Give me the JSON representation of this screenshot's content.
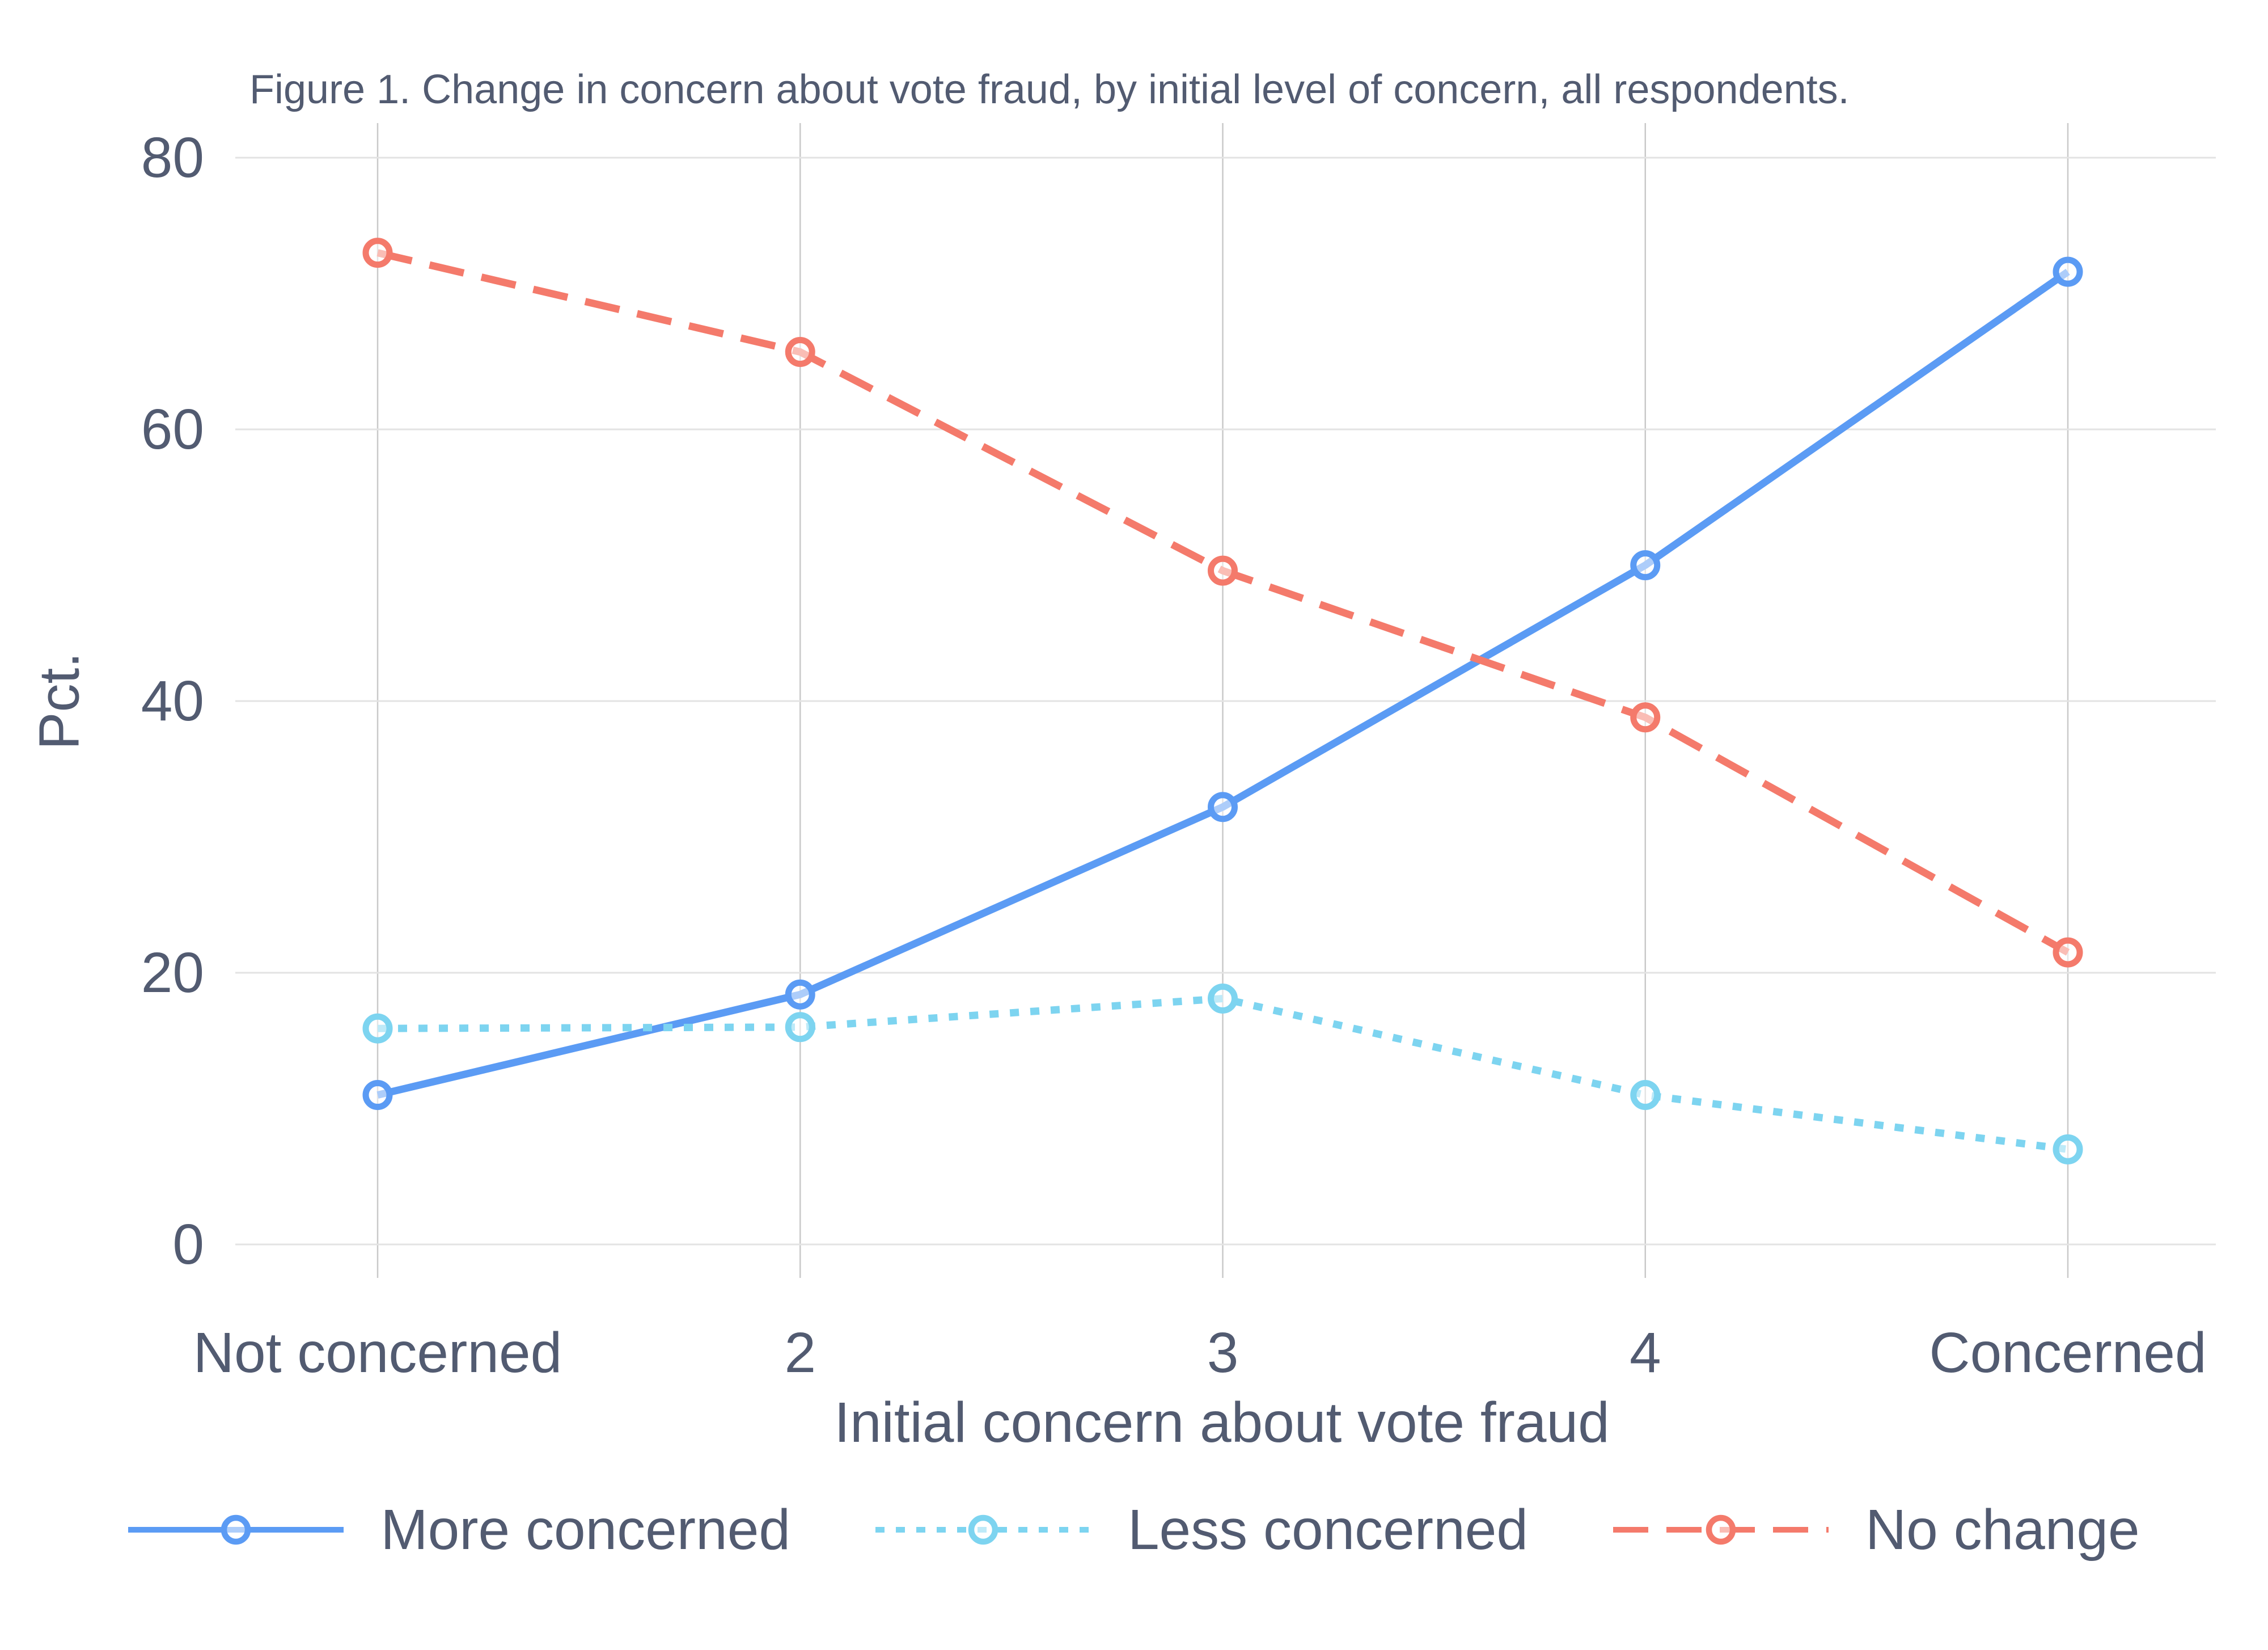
{
  "chart_data": {
    "type": "line",
    "title": "Figure 1. Change in concern about vote fraud, by initial level of concern, all respondents.",
    "xlabel": "Initial concern about vote fraud",
    "ylabel": "Pct.",
    "categories": [
      "Not concerned",
      "2",
      "3",
      "4",
      "Concerned"
    ],
    "y_ticks": [
      0,
      20,
      40,
      60,
      80
    ],
    "ylim": [
      0,
      84
    ],
    "grid": true,
    "legend_position": "bottom",
    "series": [
      {
        "name": "More concerned",
        "values": [
          11.0,
          18.4,
          32.2,
          50.0,
          71.6
        ],
        "color": "#5b9bf4",
        "line_style": "solid",
        "marker": "open-circle"
      },
      {
        "name": "Less concerned",
        "values": [
          15.9,
          16.0,
          18.1,
          11.0,
          7.0
        ],
        "color": "#7dd4f0",
        "line_style": "dotted",
        "marker": "open-circle"
      },
      {
        "name": "No change",
        "values": [
          73.0,
          65.7,
          49.6,
          38.8,
          21.5
        ],
        "color": "#f47a6b",
        "line_style": "dashed",
        "marker": "open-circle"
      }
    ],
    "colors": {
      "text": "#525b71",
      "gridline_horizontal": "#e3e3e3",
      "gridline_vertical": "#c9c9c9",
      "background": "#ffffff"
    }
  }
}
